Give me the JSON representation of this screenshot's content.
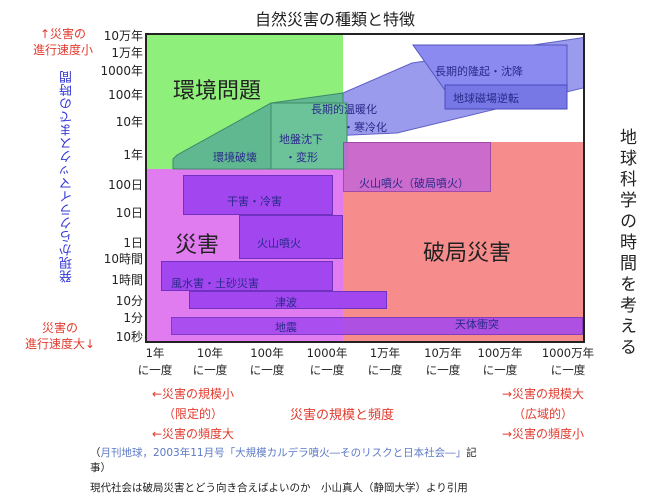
{
  "title": "自然災害の種類と特徴",
  "y_axis": {
    "top_note": "↑災害の\n進行速度小",
    "bottom_note": "災害の\n進行速度大↓",
    "label": "発現からクライマックスまでの時間",
    "ticks": [
      "10万年",
      "1万年",
      "1000年",
      "100年",
      "10年",
      "1年",
      "100日",
      "10日",
      "1日",
      "10時間",
      "1時間",
      "10分",
      "1分",
      "10秒"
    ]
  },
  "x_axis": {
    "ticks_top": [
      "1年",
      "10年",
      "100年",
      "1000年",
      "1万年",
      "10万年",
      "100万年",
      "1000万年"
    ],
    "ticks_bottom": [
      "に一度",
      "に一度",
      "に一度",
      "に一度",
      "に一度",
      "に一度",
      "に一度",
      "に一度"
    ],
    "left_note": [
      "←災害の規模小",
      "（限定的）",
      "←災害の頻度大"
    ],
    "right_note": [
      "→災害の規模大",
      "（広域的）",
      "→災害の頻度小"
    ],
    "label": "災害の規模と頻度"
  },
  "right_label": "地球科学の時間を考える",
  "regions": {
    "kankyo": "環境問題",
    "saigai": "災害",
    "hakyoku": "破局災害"
  },
  "phenomena": {
    "choki_ryuki": "長期的隆起・沈降",
    "chikyu_jiba": "地球磁場逆転",
    "choki_ondan": "長期的温暖化",
    "kanreika": "・寒冷化",
    "jiban_chinka": "地盤沈下",
    "henkei": "・変形",
    "kankyo_hakai": "環境破壊",
    "kazan_hakyoku": "火山噴火（破局噴火）",
    "kanbatsu": "干害・冷害",
    "kazan_funka": "火山噴火",
    "fusuigai": "風水害・土砂災害",
    "tsunami": "津波",
    "jishin": "地震",
    "tentai": "天体衝突"
  },
  "footer": {
    "line1_open": "（",
    "line1_link": "月刊地球，2003年11月号「大規模カルデラ噴火―そのリスクと日本社会―」",
    "line1_close": "記",
    "line2": "事）",
    "line3": "現代社会は破局災害とどう向き合えばよいのか　小山真人（静岡大学）より引用"
  },
  "colors": {
    "green": "#8ef07a",
    "pink": "#e078f0",
    "salmon": "#f78c8c",
    "purple": "#a246f0",
    "blue": "#7f7fe8",
    "teal": "#5fb890"
  }
}
